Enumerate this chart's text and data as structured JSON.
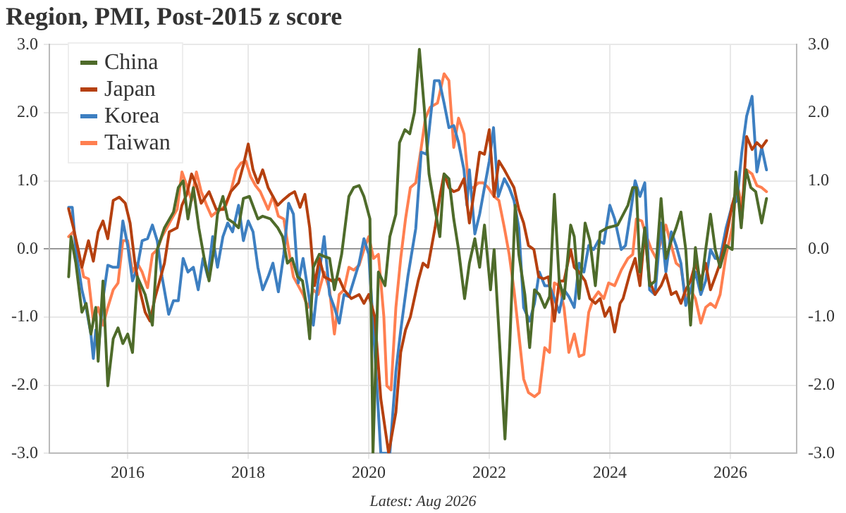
{
  "chart_data": {
    "type": "line",
    "title": "Region, PMI, Post-2015 z score",
    "annotations": [
      "Latest: Aug 2026"
    ],
    "xlim": [
      2014.7,
      2027.1
    ],
    "xticks": [
      2016,
      2018,
      2020,
      2022,
      2024,
      2026
    ],
    "ylim": [
      -3,
      3
    ],
    "yticks": [
      {
        "value": -3,
        "label": "-3.0"
      },
      {
        "value": -2,
        "label": "-2.0"
      },
      {
        "value": -1,
        "label": "-1.0"
      },
      {
        "value": 0,
        "label": "0.0"
      },
      {
        "value": 1,
        "label": "1.0"
      },
      {
        "value": 2,
        "label": "2.0"
      },
      {
        "value": 3,
        "label": "3.0"
      }
    ],
    "y2lim": [
      -3,
      3
    ],
    "y2ticks": [
      {
        "value": -3,
        "label": "-3.0"
      },
      {
        "value": -2,
        "label": "-2.0"
      },
      {
        "value": -1,
        "label": "-1.0"
      },
      {
        "value": 0,
        "label": "0.0"
      },
      {
        "value": 1,
        "label": "1.0"
      },
      {
        "value": 2,
        "label": "2.0"
      },
      {
        "value": 3,
        "label": "3.0"
      }
    ],
    "grid": true,
    "legend": "top left",
    "line_style": "solid",
    "series": [
      {
        "name": "China",
        "color": "#4e6b2a",
        "x": [
          2015.02,
          2015.06,
          2015.14,
          2015.24,
          2015.31,
          2015.39,
          2015.47,
          2015.51,
          2015.59,
          2015.67,
          2015.76,
          2015.84,
          2015.92,
          2016.0,
          2016.08,
          2016.16,
          2016.29,
          2016.41,
          2016.49,
          2016.61,
          2016.76,
          2016.84,
          2016.92,
          2017.0,
          2017.09,
          2017.18,
          2017.27,
          2017.35,
          2017.43,
          2017.49,
          2017.58,
          2017.66,
          2017.76,
          2017.84,
          2017.92,
          2018.02,
          2018.16,
          2018.24,
          2018.37,
          2018.49,
          2018.57,
          2018.65,
          2018.73,
          2018.82,
          2018.9,
          2018.96,
          2019.02,
          2019.08,
          2019.18,
          2019.26,
          2019.35,
          2019.43,
          2019.55,
          2019.67,
          2019.75,
          2019.84,
          2019.92,
          2020.02,
          2020.07,
          2020.16,
          2020.27,
          2020.35,
          2020.45,
          2020.51,
          2020.6,
          2020.68,
          2020.76,
          2020.84,
          2020.92,
          2021.0,
          2021.1,
          2021.18,
          2021.25,
          2021.33,
          2021.41,
          2021.49,
          2021.59,
          2021.67,
          2021.76,
          2021.84,
          2021.92,
          2022.02,
          2022.08,
          2022.18,
          2022.26,
          2022.34,
          2022.43,
          2022.49,
          2022.59,
          2022.67,
          2022.75,
          2022.83,
          2022.92,
          2023.0,
          2023.08,
          2023.16,
          2023.24,
          2023.35,
          2023.41,
          2023.49,
          2023.59,
          2023.67,
          2023.76,
          2023.84,
          2023.96,
          2024.13,
          2024.3,
          2024.38,
          2024.44,
          2024.5,
          2024.58,
          2024.66,
          2024.75,
          2024.85,
          2024.93,
          2025.02,
          2025.1,
          2025.18,
          2025.26,
          2025.34,
          2025.42,
          2025.51,
          2025.59,
          2025.67,
          2025.75,
          2025.83,
          2025.93,
          2026.03,
          2026.09,
          2026.18,
          2026.26,
          2026.34,
          2026.42,
          2026.52,
          2026.6
        ],
        "values": [
          -0.41,
          0.18,
          -0.21,
          -0.93,
          -0.8,
          -1.25,
          -0.86,
          -1.65,
          -0.47,
          -2.01,
          -1.32,
          -1.16,
          -1.39,
          -1.25,
          -1.52,
          -0.41,
          -0.67,
          -1.12,
          -0.01,
          0.31,
          0.54,
          0.9,
          1.0,
          0.44,
          0.9,
          0.31,
          -0.14,
          -0.47,
          -0.01,
          0.51,
          0.77,
          0.44,
          0.38,
          0.31,
          0.74,
          0.77,
          0.44,
          0.48,
          0.44,
          0.31,
          0.18,
          -0.21,
          -0.14,
          -0.41,
          -0.47,
          -0.8,
          -1.32,
          -0.27,
          -0.08,
          -0.11,
          -0.14,
          -0.6,
          -0.08,
          0.77,
          0.9,
          0.93,
          0.77,
          0.44,
          -3,
          -0.34,
          -0.54,
          0.18,
          0.51,
          1.56,
          1.75,
          1.69,
          2.01,
          2.93,
          2.08,
          1.1,
          0.58,
          0.18,
          1.1,
          1.03,
          0.44,
          -0.01,
          -0.73,
          -0.21,
          0.15,
          -0.27,
          0.35,
          -0.6,
          -0.01,
          -1.52,
          -2.79,
          -1.39,
          0.64,
          -0.08,
          -0.67,
          -1.45,
          -0.6,
          -0.67,
          -0.86,
          -0.7,
          0.8,
          -0.47,
          -0.73,
          0.35,
          0.18,
          -0.73,
          0.38,
          0.12,
          -0.54,
          0.25,
          0.31,
          0.35,
          0.64,
          0.9,
          0.9,
          -0.34,
          0.31,
          -0.54,
          -0.47,
          0.74,
          -0.14,
          0.12,
          0.31,
          0.54,
          -0.01,
          -1.12,
          0.02,
          -0.6,
          -0.01,
          0.51,
          -0.01,
          -0.27,
          0.05,
          -0.01,
          1.13,
          0.31,
          1.16,
          0.9,
          0.84,
          0.38,
          0.74
        ]
      },
      {
        "name": "Japan",
        "color": "#b5400f",
        "x": [
          2015.02,
          2015.1,
          2015.24,
          2015.35,
          2015.43,
          2015.51,
          2015.59,
          2015.67,
          2015.76,
          2015.86,
          2015.96,
          2016.04,
          2016.12,
          2016.2,
          2016.29,
          2016.37,
          2016.45,
          2016.53,
          2016.61,
          2016.69,
          2016.82,
          2016.9,
          2016.98,
          2017.06,
          2017.14,
          2017.22,
          2017.35,
          2017.47,
          2017.59,
          2017.71,
          2017.84,
          2017.92,
          2018.0,
          2018.08,
          2018.16,
          2018.24,
          2018.33,
          2018.49,
          2018.57,
          2018.69,
          2018.77,
          2018.86,
          2018.94,
          2019.02,
          2019.1,
          2019.18,
          2019.26,
          2019.39,
          2019.51,
          2019.59,
          2019.71,
          2019.84,
          2019.92,
          2020.0,
          2020.1,
          2020.2,
          2020.33,
          2020.45,
          2020.53,
          2020.61,
          2020.69,
          2020.82,
          2020.9,
          2020.98,
          2021.1,
          2021.18,
          2021.25,
          2021.33,
          2021.41,
          2021.49,
          2021.58,
          2021.67,
          2021.76,
          2021.84,
          2021.92,
          2022.0,
          2022.08,
          2022.16,
          2022.25,
          2022.33,
          2022.41,
          2022.49,
          2022.57,
          2022.65,
          2022.74,
          2022.82,
          2022.9,
          2022.98,
          2023.08,
          2023.16,
          2023.24,
          2023.35,
          2023.41,
          2023.49,
          2023.59,
          2023.67,
          2023.76,
          2023.84,
          2023.92,
          2024.0,
          2024.08,
          2024.17,
          2024.22,
          2024.34,
          2024.42,
          2024.5,
          2024.58,
          2024.66,
          2024.75,
          2024.85,
          2024.93,
          2025.02,
          2025.1,
          2025.18,
          2025.26,
          2025.34,
          2025.42,
          2025.51,
          2025.59,
          2025.67,
          2025.75,
          2025.83,
          2025.93,
          2026.03,
          2026.11,
          2026.19,
          2026.27,
          2026.36,
          2026.44,
          2026.52,
          2026.6
        ],
        "values": [
          0.59,
          0.31,
          -0.27,
          0.12,
          -0.18,
          0.25,
          0.41,
          0.15,
          0.71,
          0.76,
          0.67,
          0.38,
          -0.21,
          -0.6,
          -0.93,
          -1.06,
          -0.73,
          -0.47,
          -0.21,
          0.25,
          0.31,
          0.64,
          0.8,
          1.1,
          0.93,
          0.67,
          0.84,
          0.58,
          0.58,
          0.84,
          0.97,
          1.23,
          1.54,
          1.16,
          0.97,
          1.16,
          0.9,
          0.64,
          0.71,
          0.8,
          0.84,
          0.61,
          0.8,
          0.31,
          -0.54,
          -0.14,
          -0.41,
          -0.47,
          -0.44,
          -0.6,
          -0.73,
          -0.67,
          -0.8,
          -0.67,
          -1.0,
          -2.2,
          -3,
          -2.4,
          -1.52,
          -1.19,
          -1.0,
          -0.47,
          -0.21,
          -0.27,
          0.31,
          0.77,
          1.1,
          0.9,
          0.84,
          0.87,
          1.03,
          0.38,
          0.9,
          1.42,
          1.39,
          1.75,
          0.77,
          1.29,
          1.16,
          1.03,
          0.9,
          0.58,
          0.38,
          0.05,
          -0.01,
          -0.41,
          -0.44,
          -0.41,
          -1.06,
          -0.47,
          -0.47,
          -0.01,
          -0.27,
          -0.34,
          -0.47,
          -0.73,
          -0.8,
          -0.73,
          -0.99,
          -0.86,
          -1.22,
          -0.8,
          -0.73,
          -0.34,
          -0.14,
          -0.54,
          0.25,
          -0.47,
          -0.67,
          -0.54,
          -0.37,
          -0.67,
          -0.63,
          -0.8,
          -0.6,
          -0.47,
          -0.21,
          -0.47,
          -0.21,
          -0.6,
          -0.41,
          -0.21,
          0.18,
          0.64,
          0.9,
          0.44,
          1.65,
          1.46,
          1.56,
          1.49,
          1.59
        ]
      },
      {
        "name": "Korea",
        "color": "#3d7fc1",
        "x": [
          2015.02,
          2015.08,
          2015.14,
          2015.24,
          2015.31,
          2015.39,
          2015.43,
          2015.47,
          2015.51,
          2015.59,
          2015.67,
          2015.76,
          2015.84,
          2015.92,
          2016.0,
          2016.08,
          2016.16,
          2016.24,
          2016.33,
          2016.41,
          2016.49,
          2016.57,
          2016.68,
          2016.76,
          2016.84,
          2016.92,
          2017.0,
          2017.09,
          2017.17,
          2017.25,
          2017.33,
          2017.41,
          2017.49,
          2017.58,
          2017.66,
          2017.74,
          2017.84,
          2017.92,
          2018.0,
          2018.08,
          2018.16,
          2018.24,
          2018.33,
          2018.41,
          2018.5,
          2018.59,
          2018.67,
          2018.75,
          2018.83,
          2018.91,
          2018.99,
          2019.08,
          2019.16,
          2019.26,
          2019.35,
          2019.43,
          2019.51,
          2019.59,
          2019.67,
          2019.75,
          2019.84,
          2019.92,
          2020.0,
          2020.1,
          2020.2,
          2020.35,
          2020.45,
          2020.53,
          2020.65,
          2020.78,
          2020.87,
          2020.96,
          2021.09,
          2021.17,
          2021.25,
          2021.33,
          2021.41,
          2021.49,
          2021.58,
          2021.63,
          2021.67,
          2021.76,
          2021.84,
          2021.92,
          2022.0,
          2022.07,
          2022.15,
          2022.25,
          2022.33,
          2022.41,
          2022.49,
          2022.57,
          2022.67,
          2022.75,
          2022.83,
          2022.92,
          2023.0,
          2023.08,
          2023.16,
          2023.24,
          2023.32,
          2023.41,
          2023.49,
          2023.57,
          2023.65,
          2023.73,
          2023.81,
          2023.9,
          2024.0,
          2024.08,
          2024.19,
          2024.26,
          2024.34,
          2024.42,
          2024.5,
          2024.58,
          2024.66,
          2024.75,
          2024.85,
          2024.93,
          2025.02,
          2025.1,
          2025.18,
          2025.26,
          2025.34,
          2025.42,
          2025.51,
          2025.59,
          2025.67,
          2025.75,
          2025.83,
          2025.93,
          2026.03,
          2026.11,
          2026.19,
          2026.27,
          2026.36,
          2026.44,
          2026.52,
          2026.6
        ],
        "values": [
          0.61,
          0.61,
          -0.01,
          -0.6,
          -0.86,
          -1.25,
          -1.61,
          -1.19,
          -1.52,
          -0.73,
          -0.24,
          -0.27,
          -0.27,
          0.41,
          0.05,
          -0.47,
          -0.27,
          0.12,
          0.15,
          0.35,
          0.12,
          -0.41,
          -0.96,
          -0.76,
          -0.76,
          -0.14,
          -0.34,
          -0.27,
          -0.6,
          -0.14,
          -0.41,
          0.18,
          -0.27,
          0.18,
          0.38,
          0.25,
          0.64,
          0.12,
          0.41,
          0.25,
          -0.27,
          -0.6,
          -0.41,
          -0.21,
          -0.63,
          -0.08,
          0.67,
          0.51,
          -0.5,
          -0.14,
          -0.6,
          -1.12,
          -0.47,
          0.18,
          -0.67,
          -0.86,
          -1.09,
          -0.67,
          -0.7,
          -0.47,
          -0.21,
          0.15,
          -0.08,
          -1.5,
          -3,
          -3,
          -1.8,
          -1.2,
          -0.4,
          0.3,
          1.42,
          1.39,
          2.47,
          2.47,
          2.14,
          1.78,
          1.81,
          1.56,
          1.16,
          0.64,
          1.16,
          0.22,
          0.51,
          0.9,
          1.29,
          1.78,
          0.77,
          1.03,
          0.9,
          0.71,
          0.31,
          -0.86,
          -1.06,
          -0.8,
          -0.34,
          -0.54,
          -0.54,
          -0.73,
          -0.93,
          -0.6,
          -0.7,
          -0.86,
          -0.21,
          -0.34,
          0.05,
          -0.01,
          0.12,
          0.08,
          0.64,
          0.44,
          -0.01,
          0.05,
          0.51,
          1.0,
          0.77,
          0.97,
          -0.6,
          -0.67,
          0.38,
          -0.34,
          0.25,
          0.05,
          -0.21,
          -0.83,
          -0.6,
          -0.34,
          -0.67,
          -0.47,
          -0.01,
          -0.14,
          -0.14,
          0.31,
          0.64,
          0.71,
          1.42,
          1.95,
          2.24,
          1.13,
          1.49,
          1.16
        ]
      },
      {
        "name": "Taiwan",
        "color": "#ff7f50",
        "x": [
          2015.02,
          2015.1,
          2015.18,
          2015.27,
          2015.35,
          2015.43,
          2015.51,
          2015.59,
          2015.67,
          2015.76,
          2015.84,
          2015.92,
          2016.0,
          2016.08,
          2016.16,
          2016.24,
          2016.33,
          2016.41,
          2016.49,
          2016.57,
          2016.65,
          2016.73,
          2016.82,
          2016.9,
          2016.98,
          2017.06,
          2017.14,
          2017.22,
          2017.31,
          2017.39,
          2017.47,
          2017.55,
          2017.63,
          2017.71,
          2017.8,
          2017.88,
          2017.96,
          2018.04,
          2018.12,
          2018.2,
          2018.33,
          2018.41,
          2018.5,
          2018.59,
          2018.67,
          2018.75,
          2018.83,
          2018.91,
          2018.99,
          2019.08,
          2019.16,
          2019.26,
          2019.35,
          2019.43,
          2019.51,
          2019.59,
          2019.67,
          2019.75,
          2019.84,
          2019.92,
          2020.0,
          2020.08,
          2020.16,
          2020.25,
          2020.3,
          2020.37,
          2020.45,
          2020.53,
          2020.61,
          2020.69,
          2020.78,
          2020.86,
          2020.94,
          2021.02,
          2021.14,
          2021.25,
          2021.33,
          2021.41,
          2021.49,
          2021.58,
          2021.66,
          2021.74,
          2021.82,
          2021.9,
          2021.98,
          2022.08,
          2022.16,
          2022.25,
          2022.33,
          2022.41,
          2022.49,
          2022.57,
          2022.65,
          2022.75,
          2022.83,
          2022.92,
          2023.0,
          2023.08,
          2023.16,
          2023.24,
          2023.32,
          2023.41,
          2023.49,
          2023.57,
          2023.65,
          2023.73,
          2023.81,
          2023.9,
          2023.98,
          2024.08,
          2024.19,
          2024.3,
          2024.38,
          2024.44,
          2024.53,
          2024.61,
          2024.69,
          2024.77,
          2024.85,
          2024.93,
          2025.02,
          2025.1,
          2025.18,
          2025.26,
          2025.34,
          2025.42,
          2025.51,
          2025.59,
          2025.67,
          2025.75,
          2025.83,
          2025.93,
          2026.03,
          2026.11,
          2026.19,
          2026.27,
          2026.36,
          2026.44,
          2026.52,
          2026.6
        ],
        "values": [
          0.18,
          0.25,
          -0.01,
          -0.41,
          -0.44,
          -1.06,
          -0.86,
          -1.12,
          -0.86,
          -0.6,
          -0.5,
          0.12,
          0.12,
          -0.34,
          -0.21,
          -0.34,
          -0.57,
          -0.08,
          -0.01,
          0.18,
          0.31,
          0.44,
          0.58,
          1.13,
          0.93,
          0.71,
          1.13,
          0.84,
          0.64,
          0.48,
          0.54,
          0.58,
          0.64,
          0.84,
          1.16,
          1.26,
          1.29,
          1.06,
          0.93,
          0.84,
          0.58,
          0.77,
          0.48,
          0.44,
          -0.01,
          -0.41,
          -0.54,
          -0.67,
          -0.86,
          -0.6,
          -0.67,
          -0.34,
          -0.6,
          -1.25,
          -0.67,
          -0.6,
          -0.27,
          -0.31,
          -0.24,
          -0.01,
          0.18,
          -0.14,
          -0.08,
          -0.99,
          -2.01,
          -2.07,
          -0.86,
          -0.14,
          0.44,
          0.9,
          0.97,
          1.42,
          1.92,
          2.08,
          2.14,
          2.57,
          2.47,
          1.49,
          1.92,
          1.69,
          0.9,
          0.9,
          0.97,
          0.97,
          0.9,
          0.77,
          0.71,
          0.31,
          -0.08,
          -0.6,
          -1.25,
          -1.91,
          -2.11,
          -2.17,
          -2.11,
          -1.45,
          -1.52,
          -0.5,
          -0.54,
          -0.86,
          -1.52,
          -1.25,
          -1.58,
          -1.55,
          -0.93,
          -0.73,
          -0.63,
          -0.73,
          -0.5,
          -0.54,
          -0.31,
          -0.14,
          -0.08,
          0.44,
          0.41,
          0.18,
          -0.01,
          -0.14,
          0.12,
          0.35,
          0.05,
          -0.21,
          -0.27,
          -0.73,
          -0.6,
          -0.73,
          -1.09,
          -0.86,
          -0.8,
          -0.86,
          -0.67,
          -0.08,
          0.31,
          0.97,
          0.64,
          1.16,
          1.1,
          0.93,
          0.9,
          0.84
        ]
      }
    ]
  }
}
